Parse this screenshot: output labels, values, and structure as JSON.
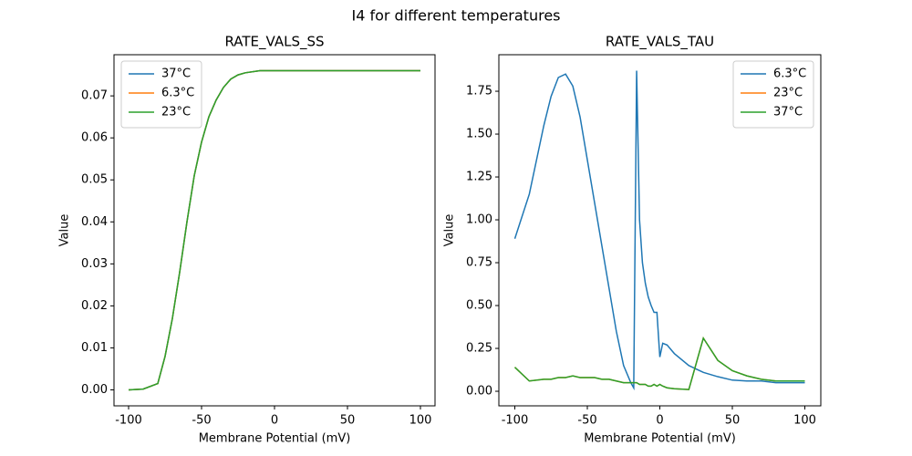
{
  "title": "I4 for different temperatures",
  "chart_data": [
    {
      "type": "line",
      "title": "RATE_VALS_SS",
      "xlabel": "Membrane Potential (mV)",
      "ylabel": "Value",
      "x": [
        -100,
        -90,
        -80,
        -75,
        -70,
        -65,
        -60,
        -55,
        -50,
        -45,
        -40,
        -35,
        -30,
        -25,
        -20,
        -10,
        0,
        10,
        20,
        30,
        40,
        50,
        60,
        70,
        80,
        90,
        100
      ],
      "series": [
        {
          "name": "37°C",
          "color": "#1f77b4",
          "values": [
            0,
            0.0002,
            0.0015,
            0.008,
            0.017,
            0.028,
            0.04,
            0.051,
            0.059,
            0.065,
            0.069,
            0.072,
            0.074,
            0.075,
            0.0755,
            0.076,
            0.076,
            0.076,
            0.076,
            0.076,
            0.076,
            0.076,
            0.076,
            0.076,
            0.076,
            0.076,
            0.076
          ]
        },
        {
          "name": "6.3°C",
          "color": "#ff7f0e",
          "values": [
            0,
            0.0002,
            0.0015,
            0.008,
            0.017,
            0.028,
            0.04,
            0.051,
            0.059,
            0.065,
            0.069,
            0.072,
            0.074,
            0.075,
            0.0755,
            0.076,
            0.076,
            0.076,
            0.076,
            0.076,
            0.076,
            0.076,
            0.076,
            0.076,
            0.076,
            0.076,
            0.076
          ]
        },
        {
          "name": "23°C",
          "color": "#2ca02c",
          "values": [
            0,
            0.0002,
            0.0015,
            0.008,
            0.017,
            0.028,
            0.04,
            0.051,
            0.059,
            0.065,
            0.069,
            0.072,
            0.074,
            0.075,
            0.0755,
            0.076,
            0.076,
            0.076,
            0.076,
            0.076,
            0.076,
            0.076,
            0.076,
            0.076,
            0.076,
            0.076,
            0.076
          ]
        }
      ],
      "xlim": [
        -110,
        110
      ],
      "ylim": [
        -0.0038,
        0.0798
      ],
      "xticks": [
        -100,
        -50,
        0,
        50,
        100
      ],
      "yticks": [
        {
          "value": 0,
          "label": "0.00"
        },
        {
          "value": 0.01,
          "label": "0.01"
        },
        {
          "value": 0.02,
          "label": "0.02"
        },
        {
          "value": 0.03,
          "label": "0.03"
        },
        {
          "value": 0.04,
          "label": "0.04"
        },
        {
          "value": 0.05,
          "label": "0.05"
        },
        {
          "value": 0.06,
          "label": "0.06"
        },
        {
          "value": 0.07,
          "label": "0.07"
        }
      ],
      "legend": "upper-left"
    },
    {
      "type": "line",
      "title": "RATE_VALS_TAU",
      "xlabel": "Membrane Potential (mV)",
      "ylabel": "Value",
      "x": [
        -100,
        -90,
        -80,
        -75,
        -70,
        -65,
        -60,
        -55,
        -50,
        -45,
        -40,
        -35,
        -30,
        -25,
        -20,
        -18,
        -16,
        -14,
        -12,
        -10,
        -8,
        -6,
        -4,
        -2,
        0,
        2,
        5,
        10,
        20,
        30,
        40,
        50,
        60,
        70,
        80,
        90,
        100
      ],
      "series": [
        {
          "name": "6.3°C",
          "color": "#1f77b4",
          "values": [
            0.89,
            1.15,
            1.55,
            1.72,
            1.83,
            1.85,
            1.78,
            1.6,
            1.35,
            1.1,
            0.85,
            0.6,
            0.35,
            0.15,
            0.05,
            0.02,
            1.87,
            1.0,
            0.75,
            0.63,
            0.55,
            0.5,
            0.46,
            0.46,
            0.2,
            0.28,
            0.27,
            0.22,
            0.15,
            0.11,
            0.085,
            0.065,
            0.06,
            0.06,
            0.05,
            0.05,
            0.05
          ]
        },
        {
          "name": "23°C",
          "color": "#ff7f0e",
          "values": [
            0.14,
            0.06,
            0.07,
            0.07,
            0.08,
            0.08,
            0.09,
            0.08,
            0.08,
            0.08,
            0.07,
            0.07,
            0.06,
            0.05,
            0.05,
            0.05,
            0.05,
            0.04,
            0.04,
            0.04,
            0.03,
            0.03,
            0.04,
            0.03,
            0.04,
            0.03,
            0.02,
            0.015,
            0.01,
            0.31,
            0.18,
            0.12,
            0.09,
            0.07,
            0.06,
            0.06,
            0.06
          ]
        },
        {
          "name": "37°C",
          "color": "#2ca02c",
          "values": [
            0.14,
            0.06,
            0.07,
            0.07,
            0.08,
            0.08,
            0.09,
            0.08,
            0.08,
            0.08,
            0.07,
            0.07,
            0.06,
            0.05,
            0.05,
            0.05,
            0.05,
            0.04,
            0.04,
            0.04,
            0.03,
            0.03,
            0.04,
            0.03,
            0.04,
            0.03,
            0.02,
            0.015,
            0.01,
            0.31,
            0.18,
            0.12,
            0.09,
            0.07,
            0.06,
            0.06,
            0.06
          ]
        }
      ],
      "xlim": [
        -111,
        111
      ],
      "ylim": [
        -0.085,
        1.963
      ],
      "xticks": [
        -100,
        -50,
        0,
        50,
        100
      ],
      "yticks": [
        {
          "value": 0,
          "label": "0.00"
        },
        {
          "value": 0.25,
          "label": "0.25"
        },
        {
          "value": 0.5,
          "label": "0.50"
        },
        {
          "value": 0.75,
          "label": "0.75"
        },
        {
          "value": 1,
          "label": "1.00"
        },
        {
          "value": 1.25,
          "label": "1.25"
        },
        {
          "value": 1.5,
          "label": "1.50"
        },
        {
          "value": 1.75,
          "label": "1.75"
        }
      ],
      "legend": "upper-right"
    }
  ]
}
